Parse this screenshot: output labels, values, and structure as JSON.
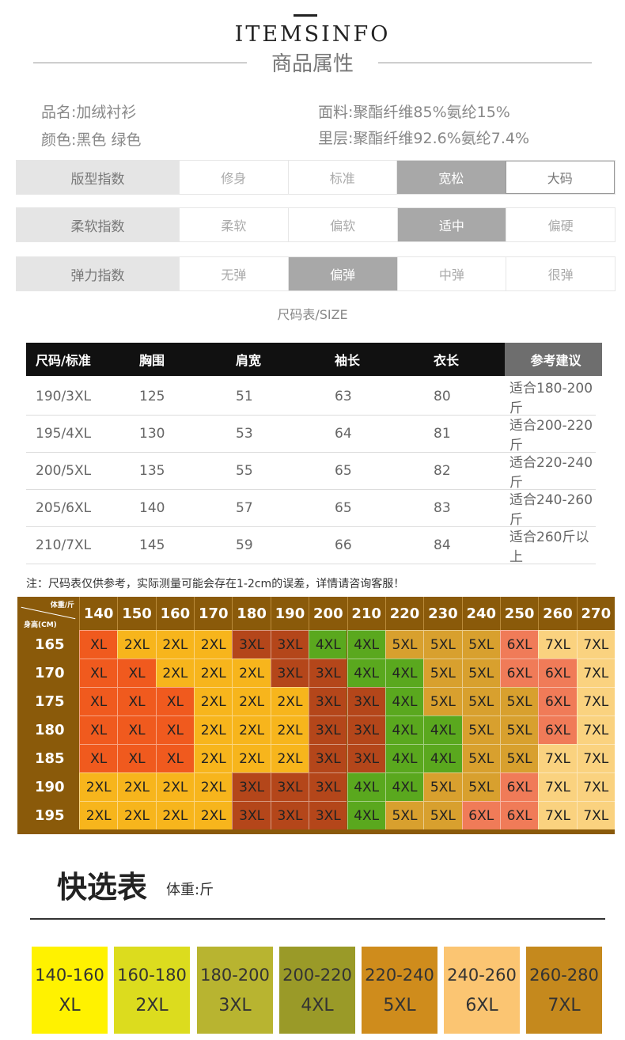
{
  "header": {
    "title_en": "ITEMSINFO",
    "title_cn": "商品属性"
  },
  "info": {
    "name": "品名:加绒衬衫",
    "color": "颜色:黑色 绿色",
    "fabric": "面料:聚酯纤维85%氨纶15%",
    "lining": "里层:聚酯纤维92.6%氨纶7.4%"
  },
  "indices": [
    {
      "label": "版型指数",
      "options": [
        "修身",
        "标准",
        "宽松",
        "大码"
      ],
      "selected": 2
    },
    {
      "label": "柔软指数",
      "options": [
        "柔软",
        "偏软",
        "适中",
        "偏硬"
      ],
      "selected": 2
    },
    {
      "label": "弹力指数",
      "options": [
        "无弹",
        "偏弹",
        "中弹",
        "很弹"
      ],
      "selected": 1
    }
  ],
  "size_title": "尺码表/SIZE",
  "size_table": {
    "headers": [
      "尺码/标准",
      "胸围",
      "肩宽",
      "袖长",
      "衣长",
      "参考建议"
    ],
    "rows": [
      [
        "190/3XL",
        "125",
        "51",
        "63",
        "80",
        "适合180-200斤"
      ],
      [
        "195/4XL",
        "130",
        "53",
        "64",
        "81",
        "适合200-220斤"
      ],
      [
        "200/5XL",
        "135",
        "55",
        "65",
        "82",
        "适合220-240斤"
      ],
      [
        "205/6XL",
        "140",
        "57",
        "65",
        "83",
        "适合240-260斤"
      ],
      [
        "210/7XL",
        "145",
        "59",
        "66",
        "84",
        "适合260斤以上"
      ]
    ]
  },
  "note": "注：尺码表仅供参考，实际测量可能会存在1-2cm的误差，详情请咨询客服！",
  "grid": {
    "corner_weight": "体重/斤",
    "corner_height": "身高(CM)",
    "weights": [
      "140",
      "150",
      "160",
      "170",
      "180",
      "190",
      "200",
      "210",
      "220",
      "230",
      "240",
      "250",
      "260",
      "270"
    ],
    "heights": [
      "165",
      "170",
      "175",
      "180",
      "185",
      "190",
      "195"
    ],
    "cells": [
      [
        "XL",
        "2XL",
        "2XL",
        "2XL",
        "3XL",
        "3XL",
        "4XL",
        "4XL",
        "5XL",
        "5XL",
        "5XL",
        "6XL",
        "7XL",
        "7XL"
      ],
      [
        "XL",
        "XL",
        "2XL",
        "2XL",
        "2XL",
        "3XL",
        "3XL",
        "4XL",
        "4XL",
        "5XL",
        "5XL",
        "6XL",
        "6XL",
        "7XL"
      ],
      [
        "XL",
        "XL",
        "XL",
        "2XL",
        "2XL",
        "2XL",
        "3XL",
        "3XL",
        "4XL",
        "5XL",
        "5XL",
        "5XL",
        "6XL",
        "7XL"
      ],
      [
        "XL",
        "XL",
        "XL",
        "2XL",
        "2XL",
        "2XL",
        "3XL",
        "3XL",
        "4XL",
        "4XL",
        "5XL",
        "5XL",
        "6XL",
        "7XL"
      ],
      [
        "XL",
        "XL",
        "XL",
        "2XL",
        "2XL",
        "2XL",
        "3XL",
        "3XL",
        "4XL",
        "4XL",
        "5XL",
        "5XL",
        "7XL",
        "7XL"
      ],
      [
        "2XL",
        "2XL",
        "2XL",
        "2XL",
        "3XL",
        "3XL",
        "3XL",
        "4XL",
        "4XL",
        "5XL",
        "5XL",
        "6XL",
        "7XL",
        "7XL"
      ],
      [
        "2XL",
        "2XL",
        "2XL",
        "2XL",
        "3XL",
        "3XL",
        "3XL",
        "4XL",
        "5XL",
        "5XL",
        "6XL",
        "6XL",
        "7XL",
        "7XL"
      ]
    ],
    "size_colors": {
      "XL": "#f05a1e",
      "2XL": "#f7b51c",
      "3XL": "#b4461a",
      "4XL": "#5aa81e",
      "5XL": "#d8a02e",
      "6XL": "#f07b58",
      "7XL": "#fad27f"
    }
  },
  "quick": {
    "title": "快选表",
    "subtitle": "体重:斤",
    "items": [
      {
        "range": "140-160",
        "size": "XL",
        "color": "#fff200"
      },
      {
        "range": "160-180",
        "size": "2XL",
        "color": "#dcdc1e"
      },
      {
        "range": "180-200",
        "size": "3XL",
        "color": "#b8b430"
      },
      {
        "range": "200-220",
        "size": "4XL",
        "color": "#9a9a28"
      },
      {
        "range": "220-240",
        "size": "5XL",
        "color": "#cf8c1c"
      },
      {
        "range": "240-260",
        "size": "6XL",
        "color": "#fbc572"
      },
      {
        "range": "260-280",
        "size": "7XL",
        "color": "#c5891d"
      }
    ]
  }
}
